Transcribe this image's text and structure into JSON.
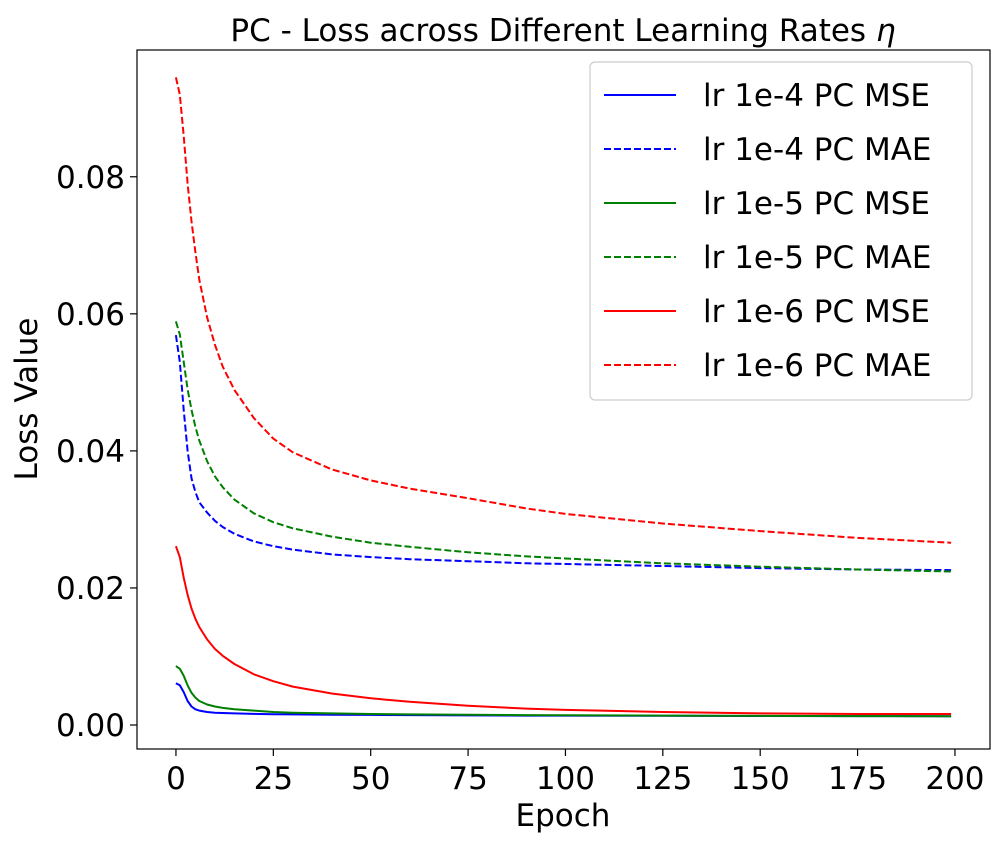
{
  "chart_data": {
    "type": "line",
    "title": "PC - Loss across Different Learning Rates",
    "title_symbol": "η",
    "xlabel": "Epoch",
    "ylabel": "Loss Value",
    "xlim": [
      -10,
      209
    ],
    "ylim": [
      -0.0035,
      0.0985
    ],
    "xticks": [
      0,
      25,
      50,
      75,
      100,
      125,
      150,
      175,
      200
    ],
    "xtick_labels": [
      "0",
      "25",
      "50",
      "75",
      "100",
      "125",
      "150",
      "175",
      "200"
    ],
    "yticks": [
      0.0,
      0.02,
      0.04,
      0.06,
      0.08
    ],
    "ytick_labels": [
      "0.00",
      "0.02",
      "0.04",
      "0.06",
      "0.08"
    ],
    "grid": false,
    "legend_position": "top-right",
    "x": [
      0,
      1,
      2,
      3,
      4,
      5,
      6,
      8,
      10,
      12,
      15,
      20,
      25,
      30,
      40,
      50,
      60,
      75,
      90,
      100,
      125,
      150,
      175,
      199
    ],
    "series": [
      {
        "name": "lr 1e-4 PC MSE",
        "color": "#0000ff",
        "style": "solid",
        "values": [
          0.0061,
          0.0058,
          0.0048,
          0.0035,
          0.0027,
          0.0023,
          0.0021,
          0.0019,
          0.0018,
          0.00175,
          0.0017,
          0.00162,
          0.00158,
          0.00155,
          0.0015,
          0.00147,
          0.00144,
          0.00141,
          0.00138,
          0.00137,
          0.00134,
          0.00132,
          0.0013,
          0.00128
        ]
      },
      {
        "name": "lr 1e-4 PC MAE",
        "color": "#0000ff",
        "style": "dashed",
        "values": [
          0.0569,
          0.053,
          0.046,
          0.04,
          0.036,
          0.034,
          0.0325,
          0.031,
          0.0298,
          0.0289,
          0.0279,
          0.0268,
          0.0261,
          0.0256,
          0.0249,
          0.0245,
          0.0242,
          0.0239,
          0.0236,
          0.0235,
          0.0232,
          0.0229,
          0.0227,
          0.0226
        ]
      },
      {
        "name": "lr 1e-5 PC MSE",
        "color": "#008000",
        "style": "solid",
        "values": [
          0.0086,
          0.0082,
          0.0072,
          0.0058,
          0.0047,
          0.004,
          0.0035,
          0.003,
          0.0027,
          0.0025,
          0.0023,
          0.0021,
          0.0019,
          0.0018,
          0.0017,
          0.0016,
          0.00155,
          0.0015,
          0.00145,
          0.00142,
          0.00137,
          0.00133,
          0.0013,
          0.00128
        ]
      },
      {
        "name": "lr 1e-5 PC MAE",
        "color": "#008000",
        "style": "dashed",
        "values": [
          0.0589,
          0.057,
          0.053,
          0.049,
          0.046,
          0.0435,
          0.0415,
          0.0385,
          0.0363,
          0.0347,
          0.0329,
          0.0309,
          0.0296,
          0.0287,
          0.0275,
          0.0266,
          0.026,
          0.0252,
          0.0246,
          0.0243,
          0.0236,
          0.0231,
          0.0227,
          0.0224
        ]
      },
      {
        "name": "lr 1e-6 PC MSE",
        "color": "#ff0000",
        "style": "solid",
        "values": [
          0.0261,
          0.0245,
          0.0215,
          0.019,
          0.017,
          0.0155,
          0.0143,
          0.0125,
          0.0111,
          0.0101,
          0.0089,
          0.0074,
          0.0064,
          0.0056,
          0.0046,
          0.0039,
          0.0034,
          0.0028,
          0.0024,
          0.0022,
          0.0019,
          0.0017,
          0.0016,
          0.0016
        ]
      },
      {
        "name": "lr 1e-6 PC MAE",
        "color": "#ff0000",
        "style": "dashed",
        "values": [
          0.0945,
          0.092,
          0.086,
          0.079,
          0.0735,
          0.069,
          0.065,
          0.0595,
          0.0555,
          0.0523,
          0.0489,
          0.0448,
          0.0418,
          0.0398,
          0.0373,
          0.0357,
          0.0345,
          0.0331,
          0.0316,
          0.0308,
          0.0294,
          0.0283,
          0.0273,
          0.0266
        ]
      }
    ]
  }
}
